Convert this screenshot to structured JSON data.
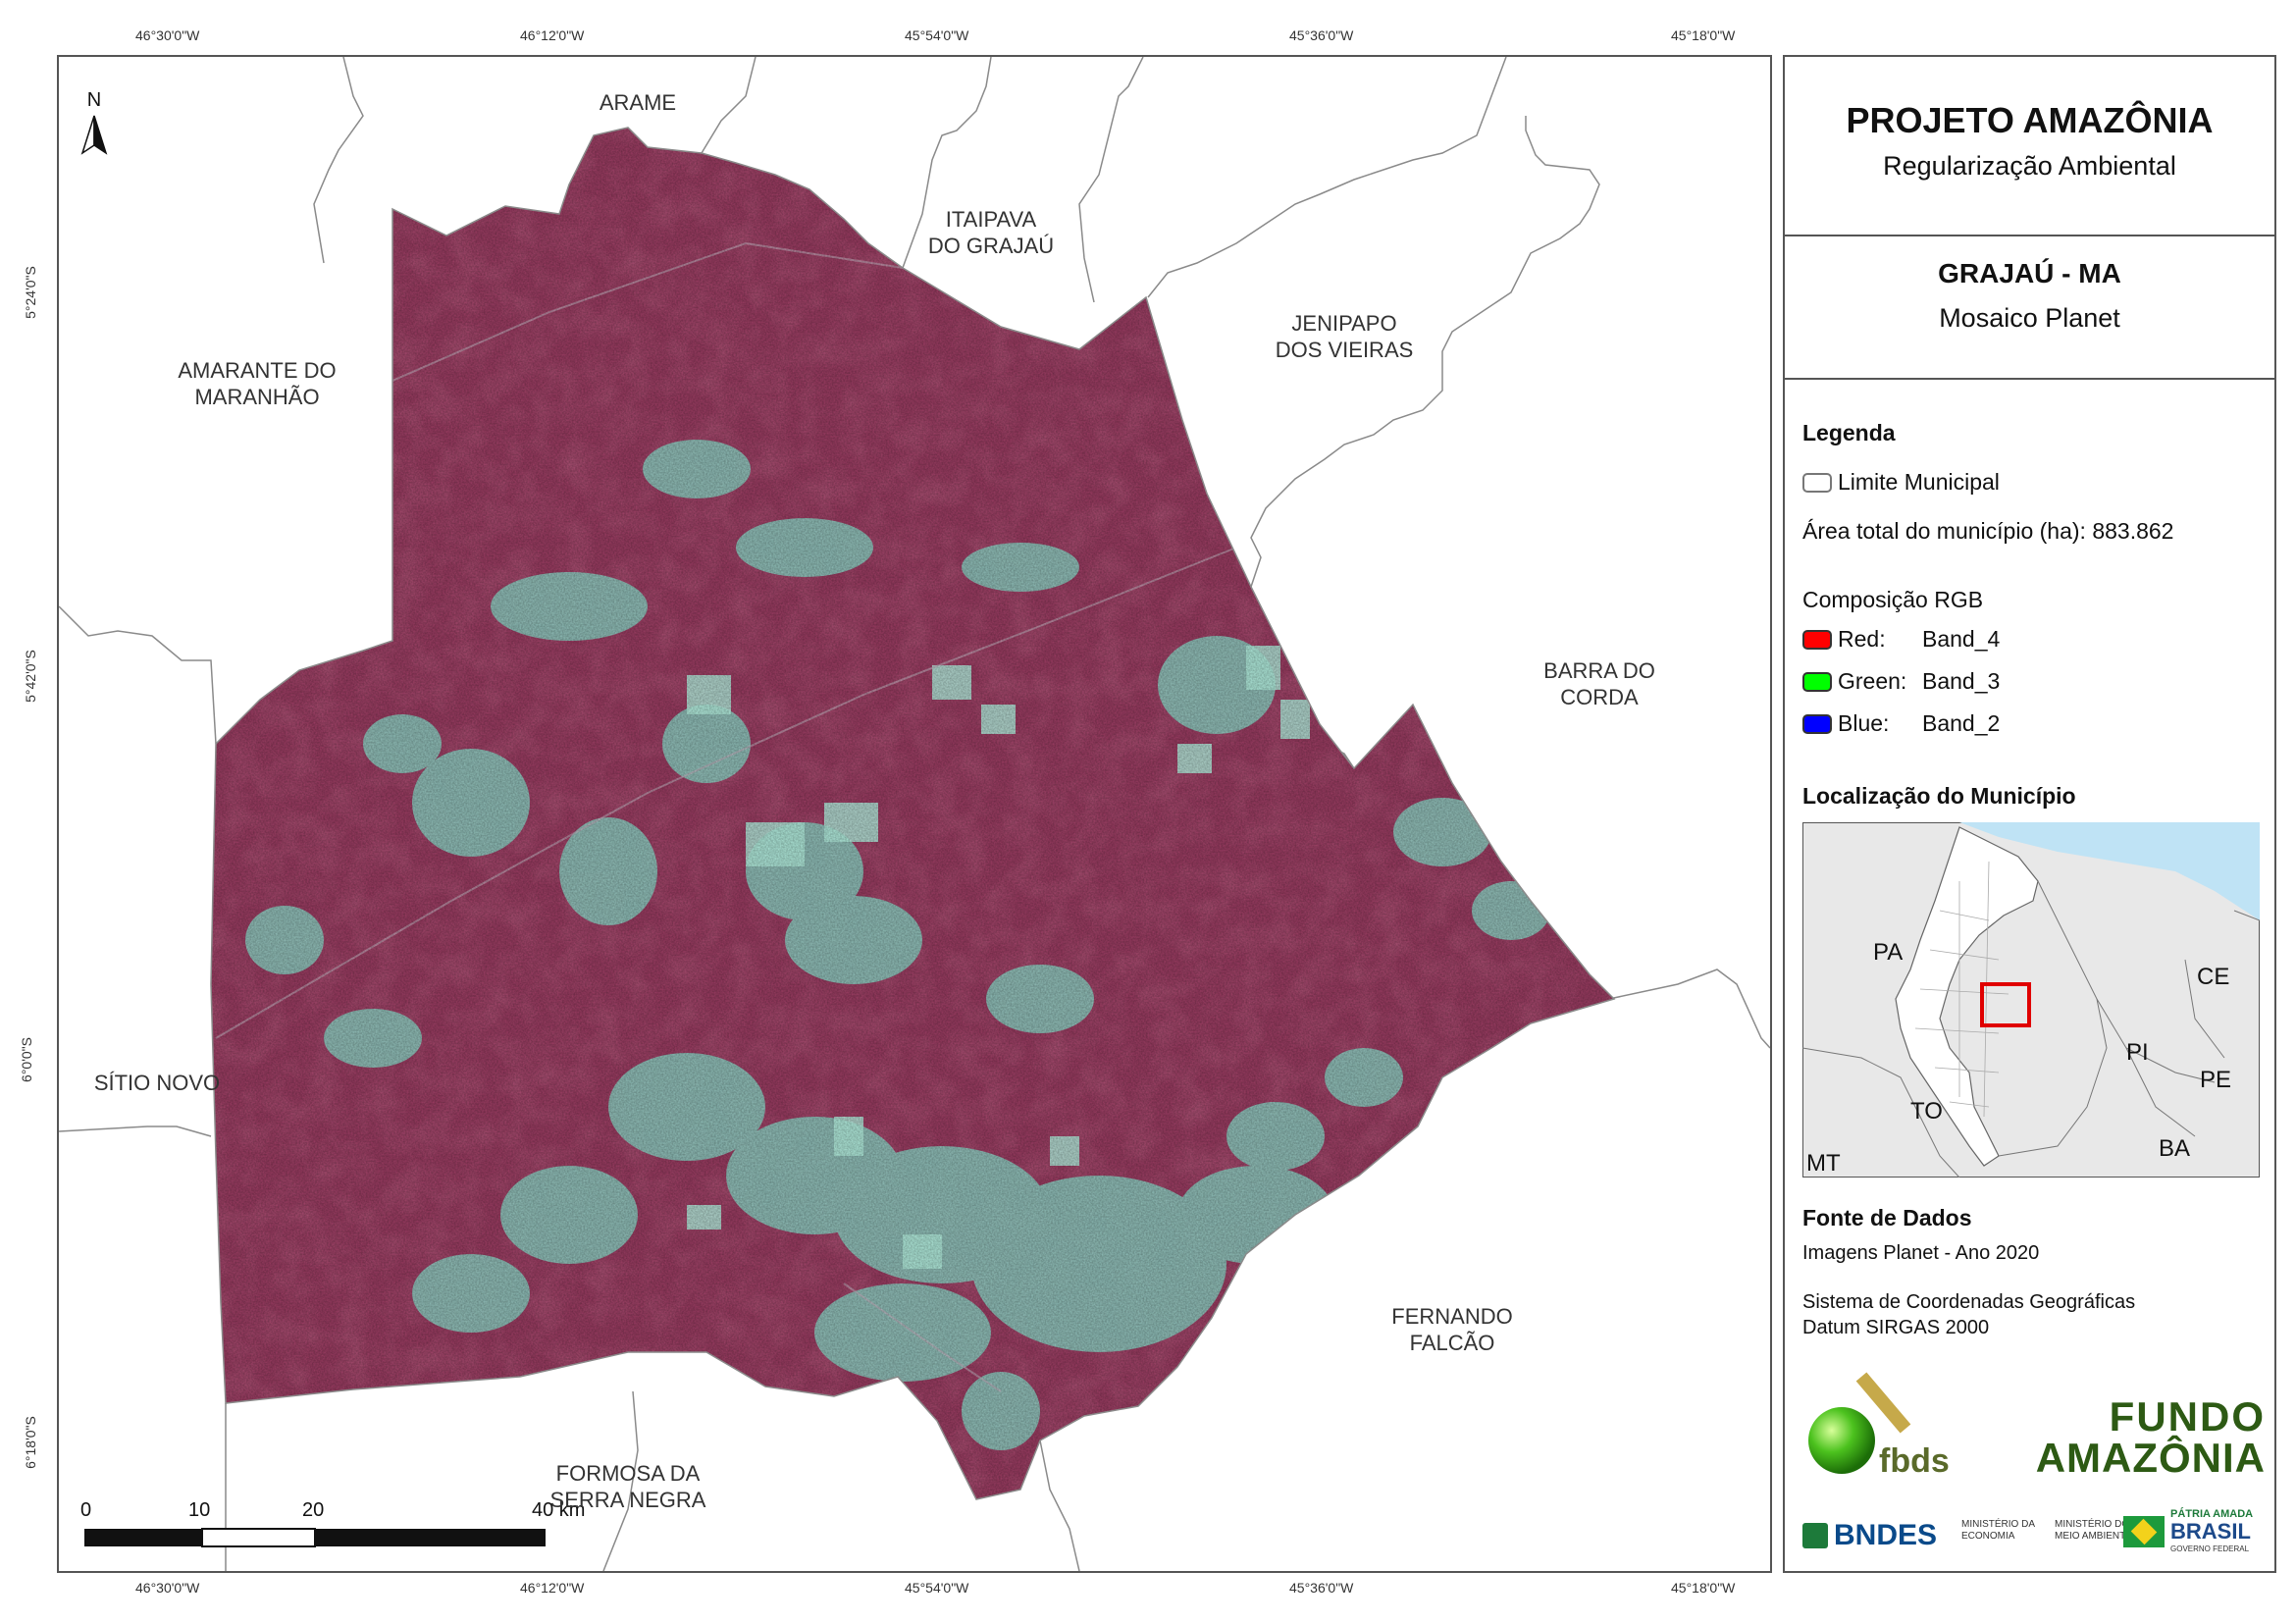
{
  "coords": {
    "top": [
      "46°30'0\"W",
      "46°12'0\"W",
      "45°54'0\"W",
      "45°36'0\"W",
      "45°18'0\"W"
    ],
    "bottom": [
      "46°30'0\"W",
      "46°12'0\"W",
      "45°54'0\"W",
      "45°36'0\"W",
      "45°18'0\"W"
    ],
    "left": [
      "5°24'0\"S",
      "5°42'0\"S",
      "6°0'0\"S",
      "6°18'0\"S"
    ]
  },
  "north_arrow": "N",
  "places": {
    "arame": "ARAME",
    "itaipava_1": "ITAIPAVA",
    "itaipava_2": "DO GRAJAÚ",
    "jenipapo_1": "JENIPAPO",
    "jenipapo_2": "DOS VIEIRAS",
    "amarante_1": "AMARANTE DO",
    "amarante_2": "MARANHÃO",
    "barra_1": "BARRA DO",
    "barra_2": "CORDA",
    "sitio": "SÍTIO NOVO",
    "fernando_1": "FERNANDO",
    "fernando_2": "FALCÃO",
    "formosa_1": "FORMOSA DA",
    "formosa_2": "SERRA NEGRA"
  },
  "scale_bar": {
    "labels": [
      "0",
      "10",
      "20",
      "40 km"
    ]
  },
  "panel": {
    "title": "PROJETO AMAZÔNIA",
    "subtitle": "Regularização Ambiental",
    "municipality": "GRAJAÚ - MA",
    "mosaic": "Mosaico Planet",
    "legend_title": "Legenda",
    "legend_limit": "Limite Municipal",
    "area_total": "Área total do município (ha): 883.862",
    "rgb_title": "Composição RGB",
    "rgb": [
      {
        "label": "Red:",
        "band": "Band_4",
        "color": "#ff0000"
      },
      {
        "label": "Green:",
        "band": "Band_3",
        "color": "#00ff00"
      },
      {
        "label": "Blue:",
        "band": "Band_2",
        "color": "#0000ff"
      }
    ],
    "location_title": "Localização do Município",
    "inset_labels": {
      "pa": "PA",
      "ce": "CE",
      "pi": "PI",
      "pe": "PE",
      "to": "TO",
      "ba": "BA",
      "mt": "MT"
    },
    "sources_title": "Fonte de Dados",
    "source_1": "Imagens Planet - Ano 2020",
    "source_2": "Sistema de Coordenadas Geográficas",
    "source_3": "Datum SIRGAS 2000",
    "logos": {
      "fbds": "fbds",
      "fundo_1": "FUNDO",
      "fundo_2": "AMAZÔNIA",
      "bndes": "BNDES",
      "min_economia": "MINISTÉRIO DA ECONOMIA",
      "min_ambiente": "MINISTÉRIO DO MEIO AMBIENTE",
      "patria_1": "PÁTRIA AMADA",
      "patria_2": "BRASIL",
      "patria_3": "GOVERNO FEDERAL"
    }
  },
  "colors": {
    "vegetation": "#9c3d63",
    "cleared": "#8fd6c8",
    "border": "#555555",
    "inset_ocean": "#bfe3f5",
    "inset_land": "#e8e8e8",
    "inset_highlight": "#e00000"
  }
}
